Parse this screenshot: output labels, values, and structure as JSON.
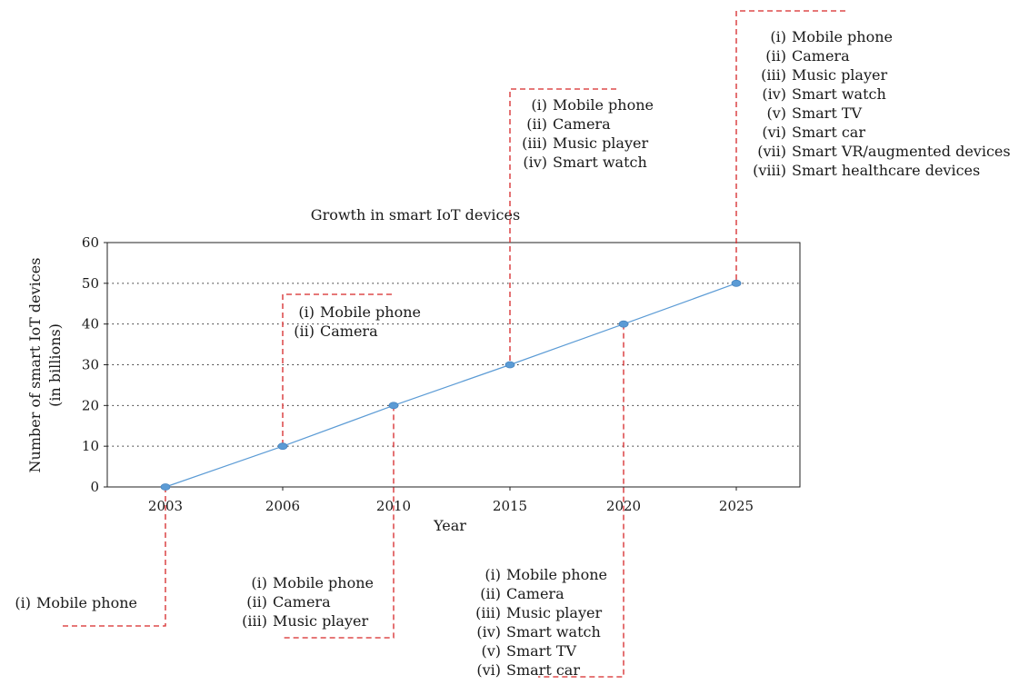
{
  "chart_data": {
    "type": "line",
    "title": "Growth in smart IoT devices",
    "xlabel": "Year",
    "ylabel_lines": [
      "Number of smart IoT devices",
      "(in billions)"
    ],
    "categories": [
      "2003",
      "2006",
      "2010",
      "2015",
      "2020",
      "2025"
    ],
    "values": [
      0,
      10,
      20,
      30,
      40,
      50
    ],
    "ylim": [
      0,
      60
    ],
    "yticks": [
      0,
      10,
      20,
      30,
      40,
      50,
      60
    ],
    "grid": "horizontal dotted",
    "colors": {
      "series": "#5b9bd5",
      "callout": "#d62728"
    },
    "annotations": [
      {
        "category": "2003",
        "position": "below",
        "items": [
          {
            "num": "(i)",
            "text": "Mobile phone"
          }
        ]
      },
      {
        "category": "2006",
        "position": "above",
        "items": [
          {
            "num": "(i)",
            "text": "Mobile phone"
          },
          {
            "num": "(ii)",
            "text": "Camera"
          }
        ]
      },
      {
        "category": "2010",
        "position": "below",
        "items": [
          {
            "num": "(i)",
            "text": "Mobile phone"
          },
          {
            "num": "(ii)",
            "text": "Camera"
          },
          {
            "num": "(iii)",
            "text": "Music player"
          }
        ]
      },
      {
        "category": "2015",
        "position": "above",
        "items": [
          {
            "num": "(i)",
            "text": "Mobile phone"
          },
          {
            "num": "(ii)",
            "text": "Camera"
          },
          {
            "num": "(iii)",
            "text": "Music player"
          },
          {
            "num": "(iv)",
            "text": "Smart watch"
          }
        ]
      },
      {
        "category": "2020",
        "position": "below",
        "items": [
          {
            "num": "(i)",
            "text": "Mobile phone"
          },
          {
            "num": "(ii)",
            "text": "Camera"
          },
          {
            "num": "(iii)",
            "text": "Music player"
          },
          {
            "num": "(iv)",
            "text": "Smart watch"
          },
          {
            "num": "(v)",
            "text": "Smart TV"
          },
          {
            "num": "(vi)",
            "text": "Smart car"
          }
        ]
      },
      {
        "category": "2025",
        "position": "above",
        "items": [
          {
            "num": "(i)",
            "text": "Mobile phone"
          },
          {
            "num": "(ii)",
            "text": "Camera"
          },
          {
            "num": "(iii)",
            "text": "Music player"
          },
          {
            "num": "(iv)",
            "text": "Smart watch"
          },
          {
            "num": "(v)",
            "text": "Smart TV"
          },
          {
            "num": "(vi)",
            "text": "Smart car"
          },
          {
            "num": "(vii)",
            "text": "Smart VR/augmented devices"
          },
          {
            "num": "(viii)",
            "text": "Smart healthcare devices"
          }
        ]
      }
    ]
  }
}
